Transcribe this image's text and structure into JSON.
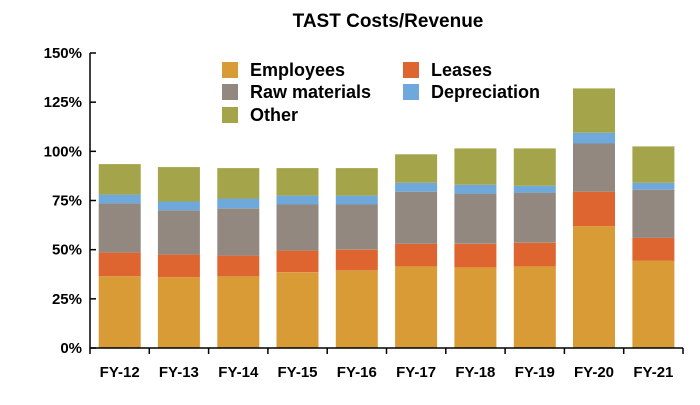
{
  "chart_data": {
    "type": "bar",
    "stacked": true,
    "title": "TAST Costs/Revenue",
    "xlabel": "",
    "ylabel": "",
    "ylim": [
      0,
      150
    ],
    "y_unit": "%",
    "y_ticks": [
      "0%",
      "25%",
      "50%",
      "75%",
      "100%",
      "125%",
      "150%"
    ],
    "y_tick_values": [
      0,
      25,
      50,
      75,
      100,
      125,
      150
    ],
    "grid": false,
    "legend_position": "top-inside",
    "categories": [
      "FY-12",
      "FY-13",
      "FY-14",
      "FY-15",
      "FY-16",
      "FY-17",
      "FY-18",
      "FY-19",
      "FY-20",
      "FY-21"
    ],
    "series": [
      {
        "name": "Employees",
        "color": "#D89B36",
        "values": [
          36.5,
          36,
          36.5,
          38.5,
          39.5,
          41.5,
          41,
          41.5,
          62,
          44.5
        ]
      },
      {
        "name": "Leases",
        "color": "#DE6530",
        "values": [
          12,
          11.5,
          10.5,
          11,
          10.5,
          11.5,
          12,
          12,
          17.5,
          11.5
        ]
      },
      {
        "name": "Raw materials",
        "color": "#928880",
        "values": [
          25,
          22.5,
          24,
          23.5,
          23,
          26.5,
          25.5,
          25.5,
          24.5,
          24.5
        ]
      },
      {
        "name": "Depreciation",
        "color": "#6FA9DC",
        "values": [
          4.5,
          4.5,
          5,
          4.5,
          4.5,
          4.5,
          4.5,
          3.5,
          5.5,
          3.5
        ]
      },
      {
        "name": "Other",
        "color": "#A4A44A",
        "values": [
          15.5,
          17.5,
          15.5,
          14,
          14,
          14.5,
          18.5,
          19,
          22.5,
          18.5
        ]
      }
    ]
  }
}
